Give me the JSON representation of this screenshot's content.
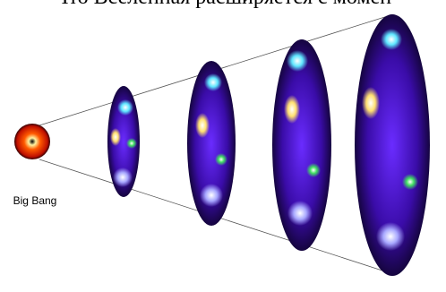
{
  "header": {
    "title": "Что Вселенная расширяется с момен"
  },
  "labels": {
    "origin": "Big Bang"
  }
}
